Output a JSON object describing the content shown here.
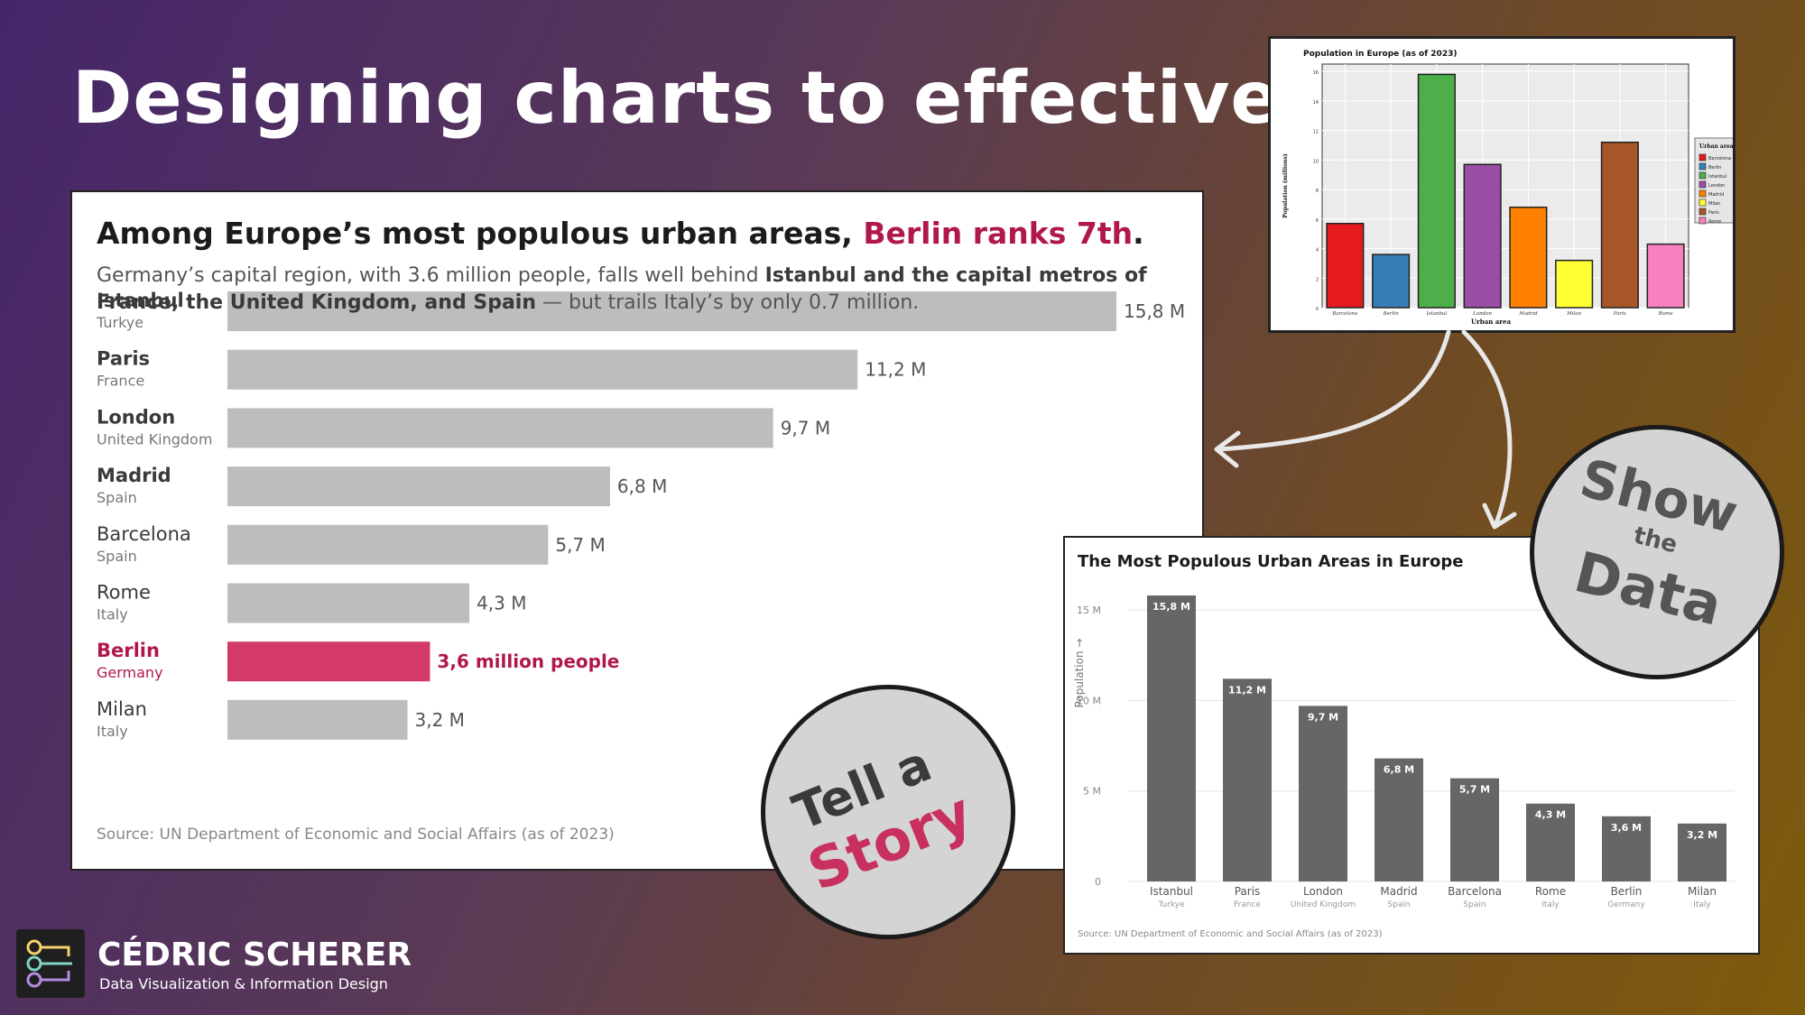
{
  "headline": "Designing charts to effectively...",
  "story_panel": {
    "title_main": "Among Europe’s most populous urban areas, ",
    "title_highlight": "Berlin ranks 7th",
    "title_end": ".",
    "subtitle_a": "Germany’s capital region, with 3.6 million people, falls well behind ",
    "subtitle_b": "Istanbul and the capital metros of France, the United Kingdom, and Spain",
    "subtitle_c": " — but trails Italy’s by only 0.7 million.",
    "source": "Source: UN Department of Economic and Social Affairs (as of 2023)"
  },
  "bad_panel": {
    "title": "Population in Europe (as of 2023)",
    "xlabel": "Urban area",
    "ylabel": "Population (millions)",
    "legend_title": "Urban area:"
  },
  "show_panel": {
    "title": "The Most Populous Urban Areas in Europe",
    "ylabel": "Population →",
    "source": "Source: UN Department of Economic and Social Affairs (as of 2023)"
  },
  "badges": {
    "story_line1": "Tell a",
    "story_line2": "Story",
    "show_line1": "Show",
    "show_line2": "the",
    "show_line3": "Data"
  },
  "logo": {
    "name": "CÉDRIC SCHERER",
    "tagline": "Data Visualization & Information Design"
  },
  "colors": {
    "highlight": "#b0184c",
    "berlin_bar": "#d33a67",
    "grey_bar": "#bdbdbd",
    "dark_bar": "#666666"
  },
  "chart_data": [
    {
      "type": "bar",
      "orientation": "horizontal",
      "title": "Among Europe’s most populous urban areas, Berlin ranks 7th.",
      "categories": [
        "Istanbul",
        "Paris",
        "London",
        "Madrid",
        "Barcelona",
        "Rome",
        "Berlin",
        "Milan"
      ],
      "countries": [
        "Turkye",
        "France",
        "United Kingdom",
        "Spain",
        "Spain",
        "Italy",
        "Germany",
        "Italy"
      ],
      "values": [
        15.8,
        11.2,
        9.7,
        6.8,
        5.7,
        4.3,
        3.6,
        3.2
      ],
      "labels": [
        "15,8 M",
        "11,2 M",
        "9,7 M",
        "6,8 M",
        "5,7 M",
        "4,3 M",
        "3,6 million people",
        "3,2 M"
      ],
      "highlight": "Berlin",
      "xlim": [
        0,
        15.8
      ]
    },
    {
      "type": "bar",
      "title": "Population in Europe (as of 2023)",
      "xlabel": "Urban area",
      "ylabel": "Population (millions)",
      "categories": [
        "Barcelona",
        "Berlin",
        "Istanbul",
        "London",
        "Madrid",
        "Milan",
        "Paris",
        "Rome"
      ],
      "values": [
        5.7,
        3.6,
        15.8,
        9.7,
        6.8,
        3.2,
        11.2,
        4.3
      ],
      "bar_colors": [
        "#e41a1c",
        "#377eb8",
        "#4daf4a",
        "#984ea3",
        "#ff7f00",
        "#ffff33",
        "#a65628",
        "#f781bf"
      ],
      "yticks": [
        0,
        2,
        4,
        6,
        8,
        10,
        12,
        14,
        16
      ],
      "ylim": [
        0,
        16.5
      ],
      "legend": [
        "Barcelona",
        "Berlin",
        "Istanbul",
        "London",
        "Madrid",
        "Milan",
        "Paris",
        "Rome"
      ],
      "legend_position": "right"
    },
    {
      "type": "bar",
      "title": "The Most Populous Urban Areas in Europe",
      "ylabel": "Population →",
      "categories": [
        "Istanbul",
        "Paris",
        "London",
        "Madrid",
        "Barcelona",
        "Rome",
        "Berlin",
        "Milan"
      ],
      "countries": [
        "Turkye",
        "France",
        "United Kingdom",
        "Spain",
        "Spain",
        "Italy",
        "Germany",
        "Italy"
      ],
      "values": [
        15.8,
        11.2,
        9.7,
        6.8,
        5.7,
        4.3,
        3.6,
        3.2
      ],
      "labels": [
        "15,8 M",
        "11,2 M",
        "9,7 M",
        "6,8 M",
        "5,7 M",
        "4,3 M",
        "3,6 M",
        "3,2 M"
      ],
      "yticks": [
        0,
        5,
        10,
        15
      ],
      "ytick_labels": [
        "0",
        "5 M",
        "10 M",
        "15 M"
      ],
      "ylim": [
        0,
        16
      ]
    }
  ]
}
